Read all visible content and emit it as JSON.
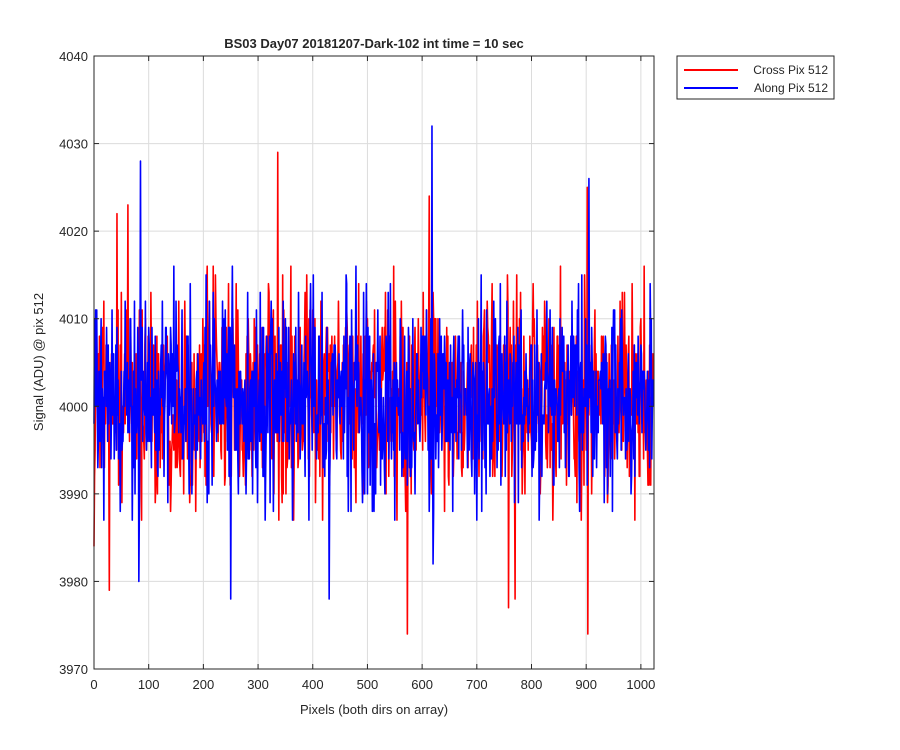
{
  "chart_data": {
    "type": "line",
    "title": "BS03 Day07 20181207-Dark-102 int time = 10 sec",
    "xlabel": "Pixels (both dirs on array)",
    "ylabel": "Signal (ADU) @ pix 512",
    "xlim": [
      0,
      1024
    ],
    "ylim": [
      3970,
      4040
    ],
    "xticks": [
      0,
      100,
      200,
      300,
      400,
      500,
      600,
      700,
      800,
      900,
      1000
    ],
    "yticks": [
      3970,
      3980,
      3990,
      4000,
      4010,
      4020,
      4030,
      4040
    ],
    "grid": true,
    "legend_position": "outside-top-right",
    "series": [
      {
        "name": "Cross Pix 512",
        "color": "#ff0000",
        "baseline": 4001,
        "noise_sigma": 6,
        "num_points": 1024,
        "notable_points": [
          {
            "x": 0,
            "y": 3984
          },
          {
            "x": 28,
            "y": 3979
          },
          {
            "x": 42,
            "y": 4022
          },
          {
            "x": 62,
            "y": 4023
          },
          {
            "x": 336,
            "y": 4029
          },
          {
            "x": 573,
            "y": 3974
          },
          {
            "x": 613,
            "y": 4024
          },
          {
            "x": 758,
            "y": 3977
          },
          {
            "x": 770,
            "y": 3978
          },
          {
            "x": 902,
            "y": 4025
          },
          {
            "x": 903,
            "y": 3974
          }
        ]
      },
      {
        "name": "Along Pix 512",
        "color": "#0000ff",
        "baseline": 4001,
        "noise_sigma": 6,
        "num_points": 1024,
        "notable_points": [
          {
            "x": 5,
            "y": 4011
          },
          {
            "x": 85,
            "y": 4028
          },
          {
            "x": 82,
            "y": 3980
          },
          {
            "x": 250,
            "y": 3978
          },
          {
            "x": 430,
            "y": 3978
          },
          {
            "x": 618,
            "y": 4032
          },
          {
            "x": 620,
            "y": 3982
          },
          {
            "x": 905,
            "y": 4026
          }
        ]
      }
    ]
  }
}
